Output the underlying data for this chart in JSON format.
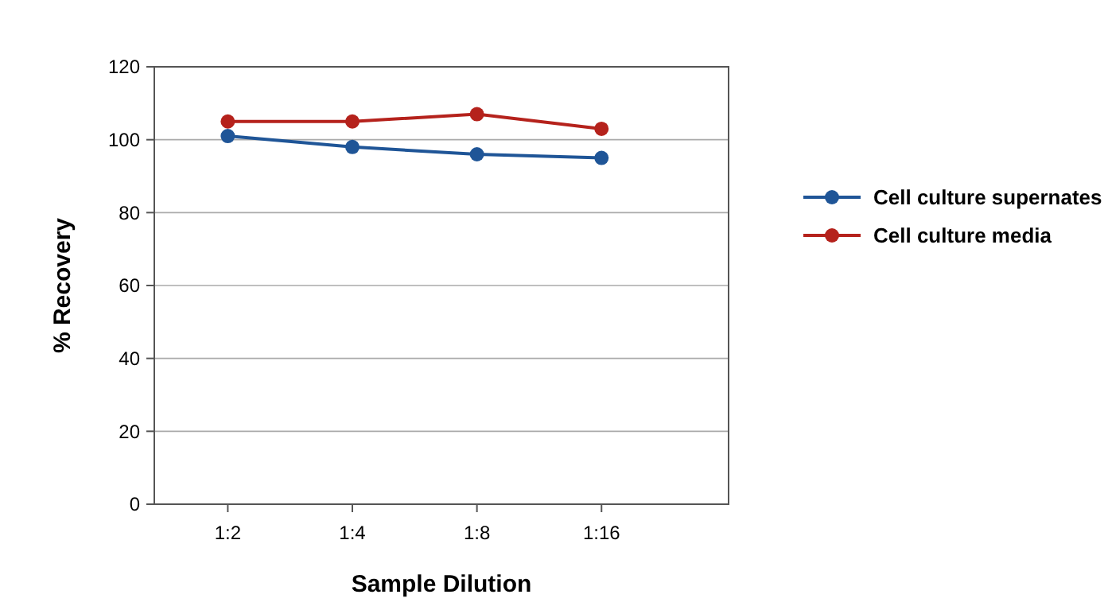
{
  "chart_data": {
    "type": "line",
    "xlabel": "Sample Dilution",
    "ylabel": "% Recovery",
    "categories": [
      "1:2",
      "1:4",
      "1:8",
      "1:16"
    ],
    "series": [
      {
        "name": "Cell culture supernates",
        "color": "#1f5597",
        "values": [
          101,
          98,
          96,
          95
        ]
      },
      {
        "name": "Cell culture media",
        "color": "#b5221c",
        "values": [
          105,
          105,
          107,
          103
        ]
      }
    ],
    "ylim": [
      0,
      120
    ],
    "yticks": [
      0,
      20,
      40,
      60,
      80,
      100,
      120
    ],
    "grid": "y",
    "legend": "right",
    "marker": "circle",
    "line_style": "solid"
  }
}
